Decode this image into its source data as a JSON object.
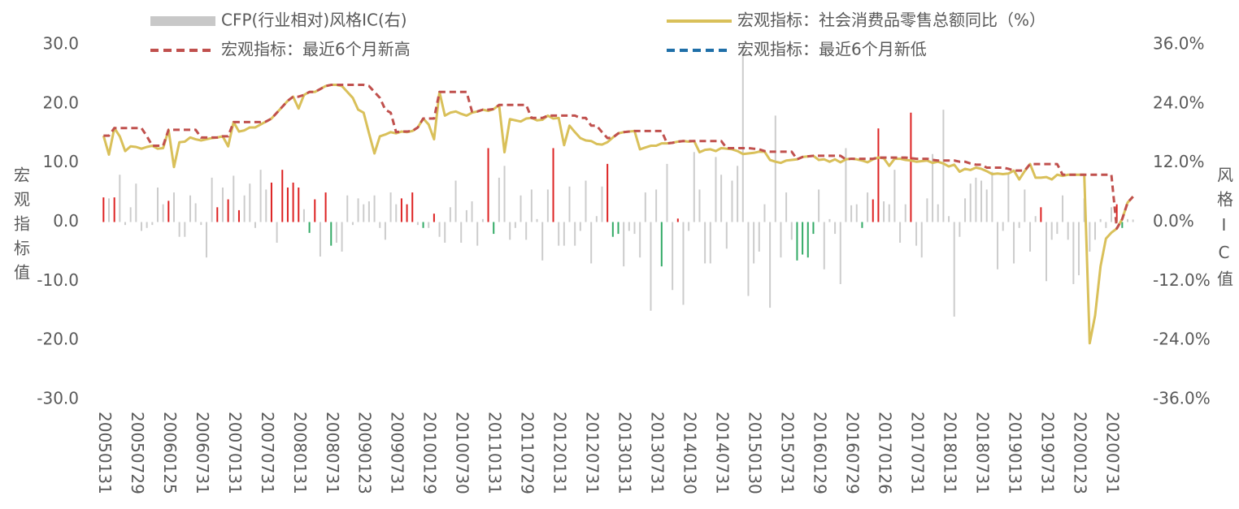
{
  "chart_data": {
    "type": "combo",
    "categories": [
      "20050131",
      null,
      null,
      null,
      null,
      null,
      "20050729",
      null,
      null,
      null,
      null,
      null,
      "20060125",
      null,
      null,
      null,
      null,
      null,
      "20060731",
      null,
      null,
      null,
      null,
      null,
      "20070131",
      null,
      null,
      null,
      null,
      null,
      "20070731",
      null,
      null,
      null,
      null,
      null,
      "20080131",
      null,
      null,
      null,
      null,
      null,
      "20080731",
      null,
      null,
      null,
      null,
      null,
      "20090123",
      null,
      null,
      null,
      null,
      null,
      "20090731",
      null,
      null,
      null,
      null,
      null,
      "20100129",
      null,
      null,
      null,
      null,
      null,
      "20100730",
      null,
      null,
      null,
      null,
      null,
      "20110131",
      null,
      null,
      null,
      null,
      null,
      "20110729",
      null,
      null,
      null,
      null,
      null,
      "20120131",
      null,
      null,
      null,
      null,
      null,
      "20120731",
      null,
      null,
      null,
      null,
      null,
      "20130131",
      null,
      null,
      null,
      null,
      null,
      "20130731",
      null,
      null,
      null,
      null,
      null,
      "20140130",
      null,
      null,
      null,
      null,
      null,
      "20140731",
      null,
      null,
      null,
      null,
      null,
      "20150130",
      null,
      null,
      null,
      null,
      null,
      "20150731",
      null,
      null,
      null,
      null,
      null,
      "20160129",
      null,
      null,
      null,
      null,
      null,
      "20160729",
      null,
      null,
      null,
      null,
      null,
      "20170126",
      null,
      null,
      null,
      null,
      null,
      "20170731",
      null,
      null,
      null,
      null,
      null,
      "20180131",
      null,
      null,
      null,
      null,
      null,
      "20180731",
      null,
      null,
      null,
      null,
      null,
      "20190131",
      null,
      null,
      null,
      null,
      null,
      "20190731",
      null,
      null,
      null,
      null,
      null,
      "20200123",
      null,
      null,
      null,
      null,
      null,
      "20200731",
      null,
      null,
      null,
      null
    ],
    "series": [
      {
        "name": "CFP(行业相对)风格IC(右)",
        "type": "bar",
        "axis": "y2",
        "color": "#c8c8c8",
        "colors": [
          "#d22",
          "#ccc",
          "#d22",
          "#ccc",
          "#ccc",
          "#ccc",
          "#ccc",
          "#ccc",
          "#ccc",
          "#ccc",
          "#ccc",
          "#ccc",
          "#d22",
          "#ccc",
          "#ccc",
          "#ccc",
          "#ccc",
          "#ccc",
          "#ccc",
          "#ccc",
          "#ccc",
          "#d22",
          "#ccc",
          "#d22",
          "#ccc",
          "#d22",
          "#ccc",
          "#ccc",
          "#ccc",
          "#ccc",
          "#ccc",
          "#d22",
          "#ccc",
          "#d22",
          "#d22",
          "#d22",
          "#d22",
          "#ccc",
          "#3a6",
          "#d22",
          "#ccc",
          "#d22",
          "#3a6",
          "#ccc",
          "#ccc",
          "#ccc",
          "#ccc",
          "#ccc",
          "#ccc",
          "#ccc",
          "#ccc",
          "#ccc",
          "#ccc",
          "#ccc",
          "#ccc",
          "#d22",
          "#d22",
          "#d22",
          "#ccc",
          "#3a6",
          "#ccc",
          "#d22",
          "#ccc",
          "#ccc",
          "#ccc",
          "#ccc",
          "#ccc",
          "#ccc",
          "#ccc",
          "#ccc",
          "#ccc",
          "#d22",
          "#3a6",
          "#ccc",
          "#ccc",
          "#ccc",
          "#ccc",
          "#ccc",
          "#ccc",
          "#ccc",
          "#ccc",
          "#ccc",
          "#ccc",
          "#d22",
          "#ccc",
          "#ccc",
          "#ccc",
          "#ccc",
          "#ccc",
          "#ccc",
          "#ccc",
          "#ccc",
          "#ccc",
          "#d22",
          "#3a6",
          "#3a6",
          "#ccc",
          "#ccc",
          "#ccc",
          "#ccc",
          "#ccc",
          "#ccc",
          "#ccc",
          "#3a6",
          "#ccc",
          "#ccc",
          "#d22",
          "#ccc",
          "#ccc",
          "#ccc",
          "#ccc",
          "#ccc",
          "#ccc",
          "#ccc",
          "#ccc",
          "#ccc",
          "#ccc",
          "#ccc",
          "#ccc",
          "#ccc",
          "#ccc",
          "#ccc",
          "#ccc",
          "#ccc",
          "#ccc",
          "#ccc",
          "#ccc",
          "#ccc",
          "#3a6",
          "#3a6",
          "#3a6",
          "#3a6",
          "#ccc",
          "#ccc",
          "#ccc",
          "#ccc",
          "#ccc",
          "#ccc",
          "#ccc",
          "#ccc",
          "#3a6",
          "#ccc",
          "#d22",
          "#d22",
          "#ccc",
          "#ccc",
          "#ccc",
          "#ccc",
          "#ccc",
          "#d22",
          "#ccc",
          "#ccc",
          "#ccc",
          "#ccc",
          "#ccc",
          "#ccc",
          "#ccc",
          "#ccc",
          "#ccc",
          "#ccc",
          "#ccc",
          "#ccc",
          "#ccc",
          "#ccc",
          "#ccc",
          "#ccc",
          "#ccc",
          "#ccc",
          "#ccc",
          "#ccc",
          "#ccc",
          "#ccc",
          "#ccc",
          "#d22",
          "#ccc",
          "#ccc",
          "#ccc",
          "#ccc",
          "#ccc",
          "#ccc",
          "#ccc",
          "#ccc",
          "#ccc",
          "#ccc",
          "#ccc",
          "#ccc",
          "#ccc",
          "#d22",
          "#3a6",
          "#ccc",
          "#ccc"
        ],
        "values": [
          5.0,
          4.8,
          5.0,
          9.6,
          -0.6,
          3.0,
          7.8,
          -1.8,
          -1.2,
          -0.6,
          7.0,
          3.6,
          4.3,
          6.0,
          -3.0,
          -3.0,
          5.4,
          3.8,
          -0.6,
          -7.2,
          9.0,
          3.0,
          7.0,
          4.6,
          9.4,
          2.4,
          5.4,
          7.8,
          -1.2,
          10.6,
          6.6,
          8.0,
          -4.2,
          10.6,
          7.0,
          8.0,
          7.0,
          2.6,
          -2.2,
          4.6,
          -7.0,
          6.0,
          -4.8,
          -4.2,
          -6.0,
          5.4,
          -0.6,
          4.8,
          3.6,
          4.2,
          5.4,
          -1.2,
          -3.6,
          6.0,
          3.6,
          4.8,
          3.6,
          6.0,
          -0.6,
          -1.2,
          -1.2,
          1.7,
          -3.0,
          -4.2,
          3.0,
          8.4,
          -4.2,
          2.4,
          4.2,
          -4.8,
          0.6,
          15.0,
          -2.4,
          9.0,
          11.4,
          -3.6,
          -1.2,
          5.4,
          -3.6,
          6.6,
          0.6,
          -7.8,
          6.6,
          15.0,
          -4.8,
          -4.8,
          7.2,
          -4.8,
          -1.8,
          8.4,
          -8.4,
          1.2,
          7.2,
          11.8,
          -3.0,
          -2.4,
          -9.0,
          -1.8,
          -2.4,
          -7.2,
          6.0,
          -18.0,
          6.6,
          -9.0,
          11.8,
          -13.8,
          0.7,
          -16.8,
          -1.8,
          14.2,
          6.6,
          -8.4,
          -8.4,
          13.2,
          9.6,
          -5.4,
          8.4,
          11.4,
          36.0,
          -15.0,
          -8.4,
          -6.0,
          3.6,
          -17.4,
          21.6,
          -7.2,
          6.0,
          -3.6,
          -7.8,
          -6.6,
          -7.2,
          -2.4,
          6.6,
          -9.6,
          0.6,
          -2.4,
          -12.6,
          15.0,
          3.4,
          3.6,
          -1.2,
          6.0,
          4.6,
          19.0,
          4.2,
          3.6,
          10.6,
          -4.2,
          3.6,
          22.2,
          -4.8,
          -7.2,
          4.8,
          13.8,
          3.6,
          22.8,
          1.2,
          -19.2,
          -3.0,
          4.8,
          7.8,
          9.0,
          8.4,
          6.6,
          10.2,
          -9.6,
          -1.8,
          9.6,
          -8.4,
          -1.2,
          6.6,
          -6.0,
          1.2,
          3.0,
          -12.0,
          -3.6,
          -2.4,
          5.4,
          -3.6,
          -12.6,
          -10.8,
          4.8,
          -6.0,
          -3.6,
          0.6,
          -1.2,
          3.0,
          3.6,
          -1.2,
          0.6,
          0.5
        ]
      },
      {
        "name": "宏观指标：社会消费品零售总额同比（%）",
        "type": "line",
        "color": "#d9c05a",
        "values": [
          14.6,
          11.4,
          15.9,
          14.5,
          12.0,
          12.8,
          12.7,
          12.4,
          12.7,
          12.9,
          12.4,
          12.5,
          15.6,
          9.3,
          13.5,
          13.6,
          14.3,
          14.0,
          13.8,
          14.0,
          14.2,
          14.3,
          14.5,
          12.8,
          16.9,
          15.3,
          15.5,
          16.0,
          16.0,
          16.5,
          17.0,
          17.5,
          18.5,
          19.5,
          20.5,
          21.2,
          19.2,
          21.5,
          22.0,
          22.0,
          22.5,
          23.0,
          23.2,
          23.2,
          23.0,
          22.0,
          21.0,
          19.0,
          18.5,
          15.0,
          11.6,
          14.5,
          14.8,
          15.2,
          15.0,
          15.3,
          15.2,
          15.4,
          16.0,
          17.5,
          16.5,
          14.0,
          22.0,
          18.0,
          18.5,
          18.7,
          18.3,
          18.0,
          18.5,
          18.7,
          19.0,
          18.8,
          19.1,
          19.8,
          11.8,
          17.4,
          17.2,
          17.0,
          17.5,
          17.6,
          17.2,
          17.3,
          18.0,
          17.5,
          17.6,
          13.0,
          16.3,
          15.2,
          14.2,
          13.8,
          13.7,
          13.2,
          13.1,
          13.5,
          14.3,
          15.0,
          15.2,
          15.3,
          15.4,
          12.3,
          12.6,
          12.9,
          12.9,
          13.3,
          13.3,
          13.4,
          13.6,
          13.7,
          13.6,
          13.7,
          11.8,
          12.2,
          12.3,
          12.0,
          12.5,
          12.4,
          12.3,
          12.0,
          11.5,
          11.6,
          11.7,
          11.9,
          11.9,
          10.5,
          10.2,
          10.0,
          10.4,
          10.5,
          10.6,
          11.0,
          11.1,
          11.2,
          10.5,
          10.6,
          10.2,
          10.6,
          10.1,
          10.6,
          10.7,
          10.6,
          10.4,
          10.1,
          10.6,
          10.9,
          10.8,
          9.5,
          10.7,
          10.7,
          10.5,
          10.4,
          10.2,
          10.3,
          10.4,
          10.0,
          10.2,
          9.9,
          9.4,
          9.7,
          8.5,
          9.0,
          8.8,
          9.2,
          9.0,
          8.6,
          8.1,
          8.2,
          8.1,
          8.2,
          8.7,
          7.2,
          8.6,
          9.8,
          7.5,
          7.5,
          7.6,
          7.2,
          8.0,
          7.8,
          8.0,
          8.0,
          8.0,
          8.0,
          -20.5,
          -15.8,
          -7.5,
          -2.8,
          -1.8,
          -1.1,
          0.5,
          3.3,
          4.3
        ]
      },
      {
        "name": "宏观指标：最近6个月新高",
        "type": "line",
        "dash": true,
        "color": "#c0504d",
        "values": [
          14.6,
          14.6,
          15.9,
          15.9,
          15.9,
          15.9,
          15.9,
          15.9,
          14.5,
          12.9,
          12.9,
          12.9,
          15.6,
          15.6,
          15.6,
          15.6,
          15.6,
          15.6,
          14.3,
          14.3,
          14.3,
          14.3,
          14.5,
          14.5,
          16.9,
          16.9,
          16.9,
          16.9,
          16.9,
          16.9,
          17.0,
          17.5,
          18.5,
          19.5,
          20.5,
          21.2,
          21.2,
          21.5,
          22.0,
          22.0,
          22.5,
          23.0,
          23.2,
          23.2,
          23.2,
          23.2,
          23.2,
          23.2,
          23.2,
          23.0,
          22.0,
          21.0,
          19.0,
          18.5,
          15.2,
          15.3,
          15.3,
          15.4,
          16.0,
          17.5,
          17.5,
          17.5,
          22.0,
          22.0,
          22.0,
          22.0,
          22.0,
          22.0,
          18.7,
          18.7,
          19.0,
          19.0,
          19.1,
          19.8,
          19.8,
          19.8,
          19.8,
          19.8,
          19.8,
          17.6,
          17.6,
          17.6,
          18.0,
          18.0,
          18.0,
          18.0,
          18.0,
          18.0,
          17.6,
          17.6,
          16.3,
          16.3,
          15.2,
          14.2,
          14.3,
          15.0,
          15.2,
          15.3,
          15.4,
          15.4,
          15.4,
          15.4,
          15.4,
          15.4,
          13.3,
          13.4,
          13.6,
          13.7,
          13.7,
          13.7,
          13.7,
          13.7,
          13.7,
          13.7,
          13.7,
          12.5,
          12.5,
          12.5,
          12.5,
          12.5,
          12.4,
          12.3,
          12.0,
          11.9,
          11.9,
          11.9,
          11.9,
          11.9,
          10.6,
          11.0,
          11.1,
          11.2,
          11.2,
          11.2,
          11.2,
          11.2,
          11.2,
          10.6,
          10.7,
          10.7,
          10.7,
          10.7,
          10.7,
          10.9,
          10.9,
          10.9,
          10.9,
          10.9,
          10.9,
          10.8,
          10.7,
          10.7,
          10.7,
          10.5,
          10.4,
          10.4,
          10.4,
          10.4,
          10.2,
          10.2,
          9.9,
          9.7,
          9.7,
          9.2,
          9.2,
          9.2,
          9.2,
          9.0,
          8.7,
          8.7,
          8.7,
          9.8,
          9.8,
          9.8,
          9.8,
          9.8,
          9.8,
          8.0,
          8.0,
          8.0,
          8.0,
          8.0,
          8.0,
          8.0,
          8.0,
          8.0,
          8.0,
          -1.1,
          0.5,
          3.3,
          4.3
        ]
      },
      {
        "name": "宏观指标：最近6个月新低",
        "type": "line",
        "dash": true,
        "color": "#1f6fa8",
        "values": [
          null,
          null,
          null,
          null,
          null,
          null,
          null,
          null,
          null,
          null,
          null,
          null,
          null,
          null,
          null,
          null,
          null,
          null,
          null,
          null,
          null,
          null,
          null,
          null,
          null,
          null,
          null,
          null,
          null,
          null,
          null,
          null,
          null,
          null,
          null,
          null,
          null,
          null,
          null,
          null,
          null,
          null,
          null,
          null,
          null,
          null,
          null,
          null,
          null,
          null,
          null,
          null,
          null,
          null,
          null,
          null,
          null,
          null,
          null,
          null,
          null,
          null,
          null,
          null,
          null,
          null,
          null,
          null,
          null,
          null,
          null,
          null,
          null,
          null,
          null,
          null,
          null,
          null,
          null,
          null,
          null,
          null,
          null,
          null,
          null,
          null,
          null,
          null,
          null,
          null,
          null,
          null,
          null,
          null,
          null,
          null,
          null,
          null,
          null,
          null,
          null,
          null,
          null,
          null,
          null,
          null,
          null,
          null,
          null,
          null,
          null,
          null,
          null,
          null,
          null,
          null,
          null,
          null,
          null,
          null,
          null,
          null,
          null,
          null,
          null,
          null,
          null,
          null,
          null,
          null,
          null,
          null,
          null,
          null,
          null,
          null,
          null,
          null,
          null,
          null,
          null,
          null,
          null,
          null,
          null,
          null,
          null,
          null,
          null,
          null,
          null,
          null,
          null,
          null,
          null,
          null,
          null,
          null,
          null,
          null,
          null,
          null,
          null,
          null,
          null,
          null,
          null,
          null,
          null,
          null,
          null,
          null,
          null,
          null,
          null,
          null,
          null,
          null,
          null,
          null,
          null,
          null,
          null,
          null,
          null,
          null,
          null,
          null,
          null,
          null,
          null
        ]
      }
    ],
    "ylim": [
      -30,
      30
    ],
    "yticks": [
      {
        "value": 30,
        "label": "30.0"
      },
      {
        "value": 20,
        "label": "20.0"
      },
      {
        "value": 10,
        "label": "10.0"
      },
      {
        "value": 0,
        "label": "0.0"
      },
      {
        "value": -10,
        "label": "-10.0"
      },
      {
        "value": -20,
        "label": "-20.0"
      },
      {
        "value": -30,
        "label": "-30.0"
      }
    ],
    "y2lim": [
      -36,
      36
    ],
    "y2ticks": [
      {
        "value": 36,
        "label": "36.0%"
      },
      {
        "value": 24,
        "label": "24.0%"
      },
      {
        "value": 12,
        "label": "12.0%"
      },
      {
        "value": 0,
        "label": "0.0%"
      },
      {
        "value": -12,
        "label": "-12.0%"
      },
      {
        "value": -24,
        "label": "-24.0%"
      },
      {
        "value": -36,
        "label": "-36.0%"
      }
    ],
    "ylabel": "宏观指标值",
    "y2label": "风格IC值"
  }
}
